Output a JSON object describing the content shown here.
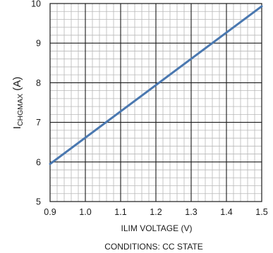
{
  "chart_data": {
    "type": "line",
    "xlabel": "ILIM VOLTAGE (V)",
    "ylabel": {
      "main": "I",
      "subscript": "CHGMAX",
      "suffix": " (A)"
    },
    "caption": "CONDITIONS: CC STATE",
    "xlim": [
      0.9,
      1.5
    ],
    "ylim": [
      5,
      10
    ],
    "x_ticks": [
      "0.9",
      "1.0",
      "1.1",
      "1.2",
      "1.3",
      "1.4",
      "1.5"
    ],
    "y_ticks": [
      "5",
      "6",
      "7",
      "8",
      "9",
      "10"
    ],
    "grid": true,
    "series": [
      {
        "color": "#4a78b0",
        "x": [
          0.9,
          1.5
        ],
        "y": [
          5.95,
          9.93
        ]
      }
    ]
  }
}
